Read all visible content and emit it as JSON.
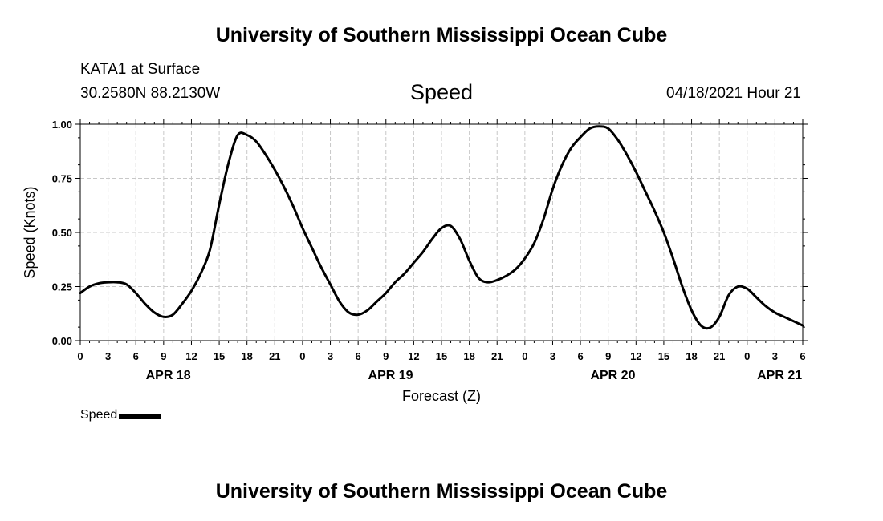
{
  "header": {
    "top": "University of Southern Mississippi Ocean Cube",
    "bottom": "University of Southern Mississippi Ocean Cube"
  },
  "station": {
    "name": "KATA1 at Surface",
    "coords": "30.2580N  88.2130W",
    "datetime": "04/18/2021 Hour 21"
  },
  "legend": {
    "label": "Speed"
  },
  "chart_data": {
    "type": "line",
    "title": "Speed",
    "xlabel": "Forecast (Z)",
    "ylabel": "Speed (Knots)",
    "xlim": [
      0,
      78
    ],
    "ylim": [
      0,
      1
    ],
    "yticks": [
      "0.00",
      "0.25",
      "0.50",
      "0.75",
      "1.00"
    ],
    "xtick_labels": [
      "0",
      "3",
      "6",
      "9",
      "12",
      "15",
      "18",
      "21",
      "0",
      "3",
      "6",
      "9",
      "12",
      "15",
      "18",
      "21",
      "0",
      "3",
      "6",
      "9",
      "12",
      "15",
      "18",
      "21",
      "0",
      "3",
      "6"
    ],
    "day_labels": [
      {
        "hour": 9.5,
        "label": "APR 18"
      },
      {
        "hour": 33.5,
        "label": "APR 19"
      },
      {
        "hour": 57.5,
        "label": "APR 20"
      },
      {
        "hour": 75.5,
        "label": "APR 21"
      }
    ],
    "grid": true,
    "series": [
      {
        "name": "Speed",
        "x": [
          0,
          1,
          2,
          3,
          4,
          5,
          6,
          7,
          8,
          9,
          10,
          11,
          12,
          13,
          14,
          15,
          16,
          17,
          18,
          19,
          20,
          21,
          22,
          23,
          24,
          25,
          26,
          27,
          28,
          29,
          30,
          31,
          32,
          33,
          34,
          35,
          36,
          37,
          38,
          39,
          40,
          41,
          42,
          43,
          44,
          45,
          46,
          47,
          48,
          49,
          50,
          51,
          52,
          53,
          54,
          55,
          56,
          57,
          58,
          59,
          60,
          61,
          62,
          63,
          64,
          65,
          66,
          67,
          68,
          69,
          70,
          71,
          72,
          73,
          74,
          75,
          76,
          77,
          78
        ],
        "values": [
          0.22,
          0.25,
          0.265,
          0.27,
          0.27,
          0.26,
          0.22,
          0.17,
          0.13,
          0.11,
          0.12,
          0.17,
          0.23,
          0.31,
          0.42,
          0.63,
          0.82,
          0.95,
          0.95,
          0.92,
          0.86,
          0.79,
          0.71,
          0.62,
          0.52,
          0.43,
          0.34,
          0.26,
          0.18,
          0.13,
          0.12,
          0.14,
          0.18,
          0.22,
          0.27,
          0.31,
          0.36,
          0.41,
          0.47,
          0.52,
          0.53,
          0.47,
          0.37,
          0.29,
          0.27,
          0.28,
          0.3,
          0.33,
          0.38,
          0.45,
          0.56,
          0.7,
          0.81,
          0.89,
          0.94,
          0.98,
          0.99,
          0.98,
          0.93,
          0.86,
          0.78,
          0.69,
          0.6,
          0.5,
          0.38,
          0.25,
          0.14,
          0.07,
          0.06,
          0.11,
          0.21,
          0.25,
          0.24,
          0.2,
          0.16,
          0.13,
          0.11,
          0.09,
          0.07
        ]
      }
    ]
  }
}
